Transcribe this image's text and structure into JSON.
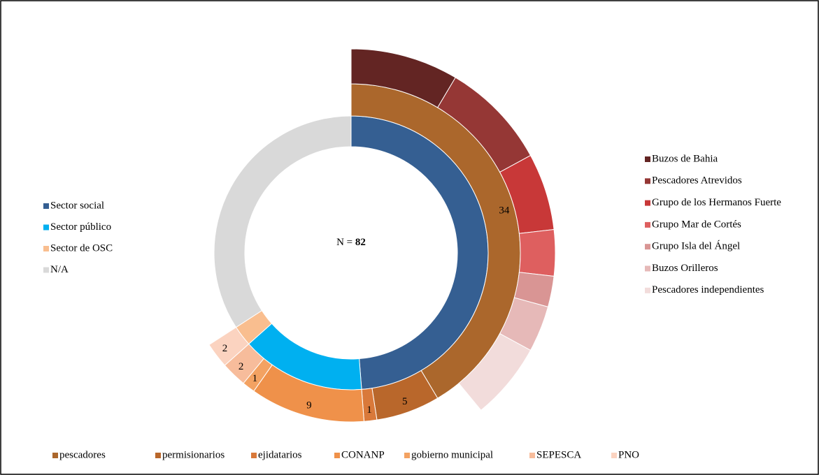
{
  "chart_data": {
    "type": "sunburst",
    "center_label": {
      "text": "N = ",
      "value": 82
    },
    "rings": [
      {
        "legend": "left",
        "names": [
          "Sector social",
          "Sector público",
          "Sector de OSC",
          "N/A"
        ],
        "colors": [
          "#355f92",
          "#00b0f0",
          "#f9be8f",
          "#d9d9d9"
        ],
        "values": [
          40,
          12,
          2,
          28
        ]
      },
      {
        "legend": "bottom",
        "show_values": true,
        "names": [
          "pescadores",
          "permisionarios",
          "ejidatarios",
          "CONANP",
          "gobierno municipal",
          "SEPESCA",
          "PNO"
        ],
        "colors": [
          "#ab672c",
          "#b9672b",
          "#d9793a",
          "#ef914a",
          "#f3a262",
          "#f7bc9b",
          "#fbd3c0"
        ],
        "values": [
          34,
          5,
          1,
          9,
          1,
          2,
          2
        ]
      },
      {
        "legend": "right",
        "names": [
          "Buzos de Bahia",
          "Pescadores Atrevidos",
          "Grupo de los Hermanos Fuerte",
          "Grupo Mar de Cortés",
          "Grupo Isla del Ángel",
          "Buzos Orilleros",
          "Pescadores independientes"
        ],
        "colors": [
          "#632523",
          "#953735",
          "#c83838",
          "#de5f5f",
          "#d99594",
          "#e6b9b8",
          "#f2dcdb"
        ],
        "values": [
          7,
          7,
          5,
          3,
          2,
          3,
          5
        ]
      }
    ]
  }
}
